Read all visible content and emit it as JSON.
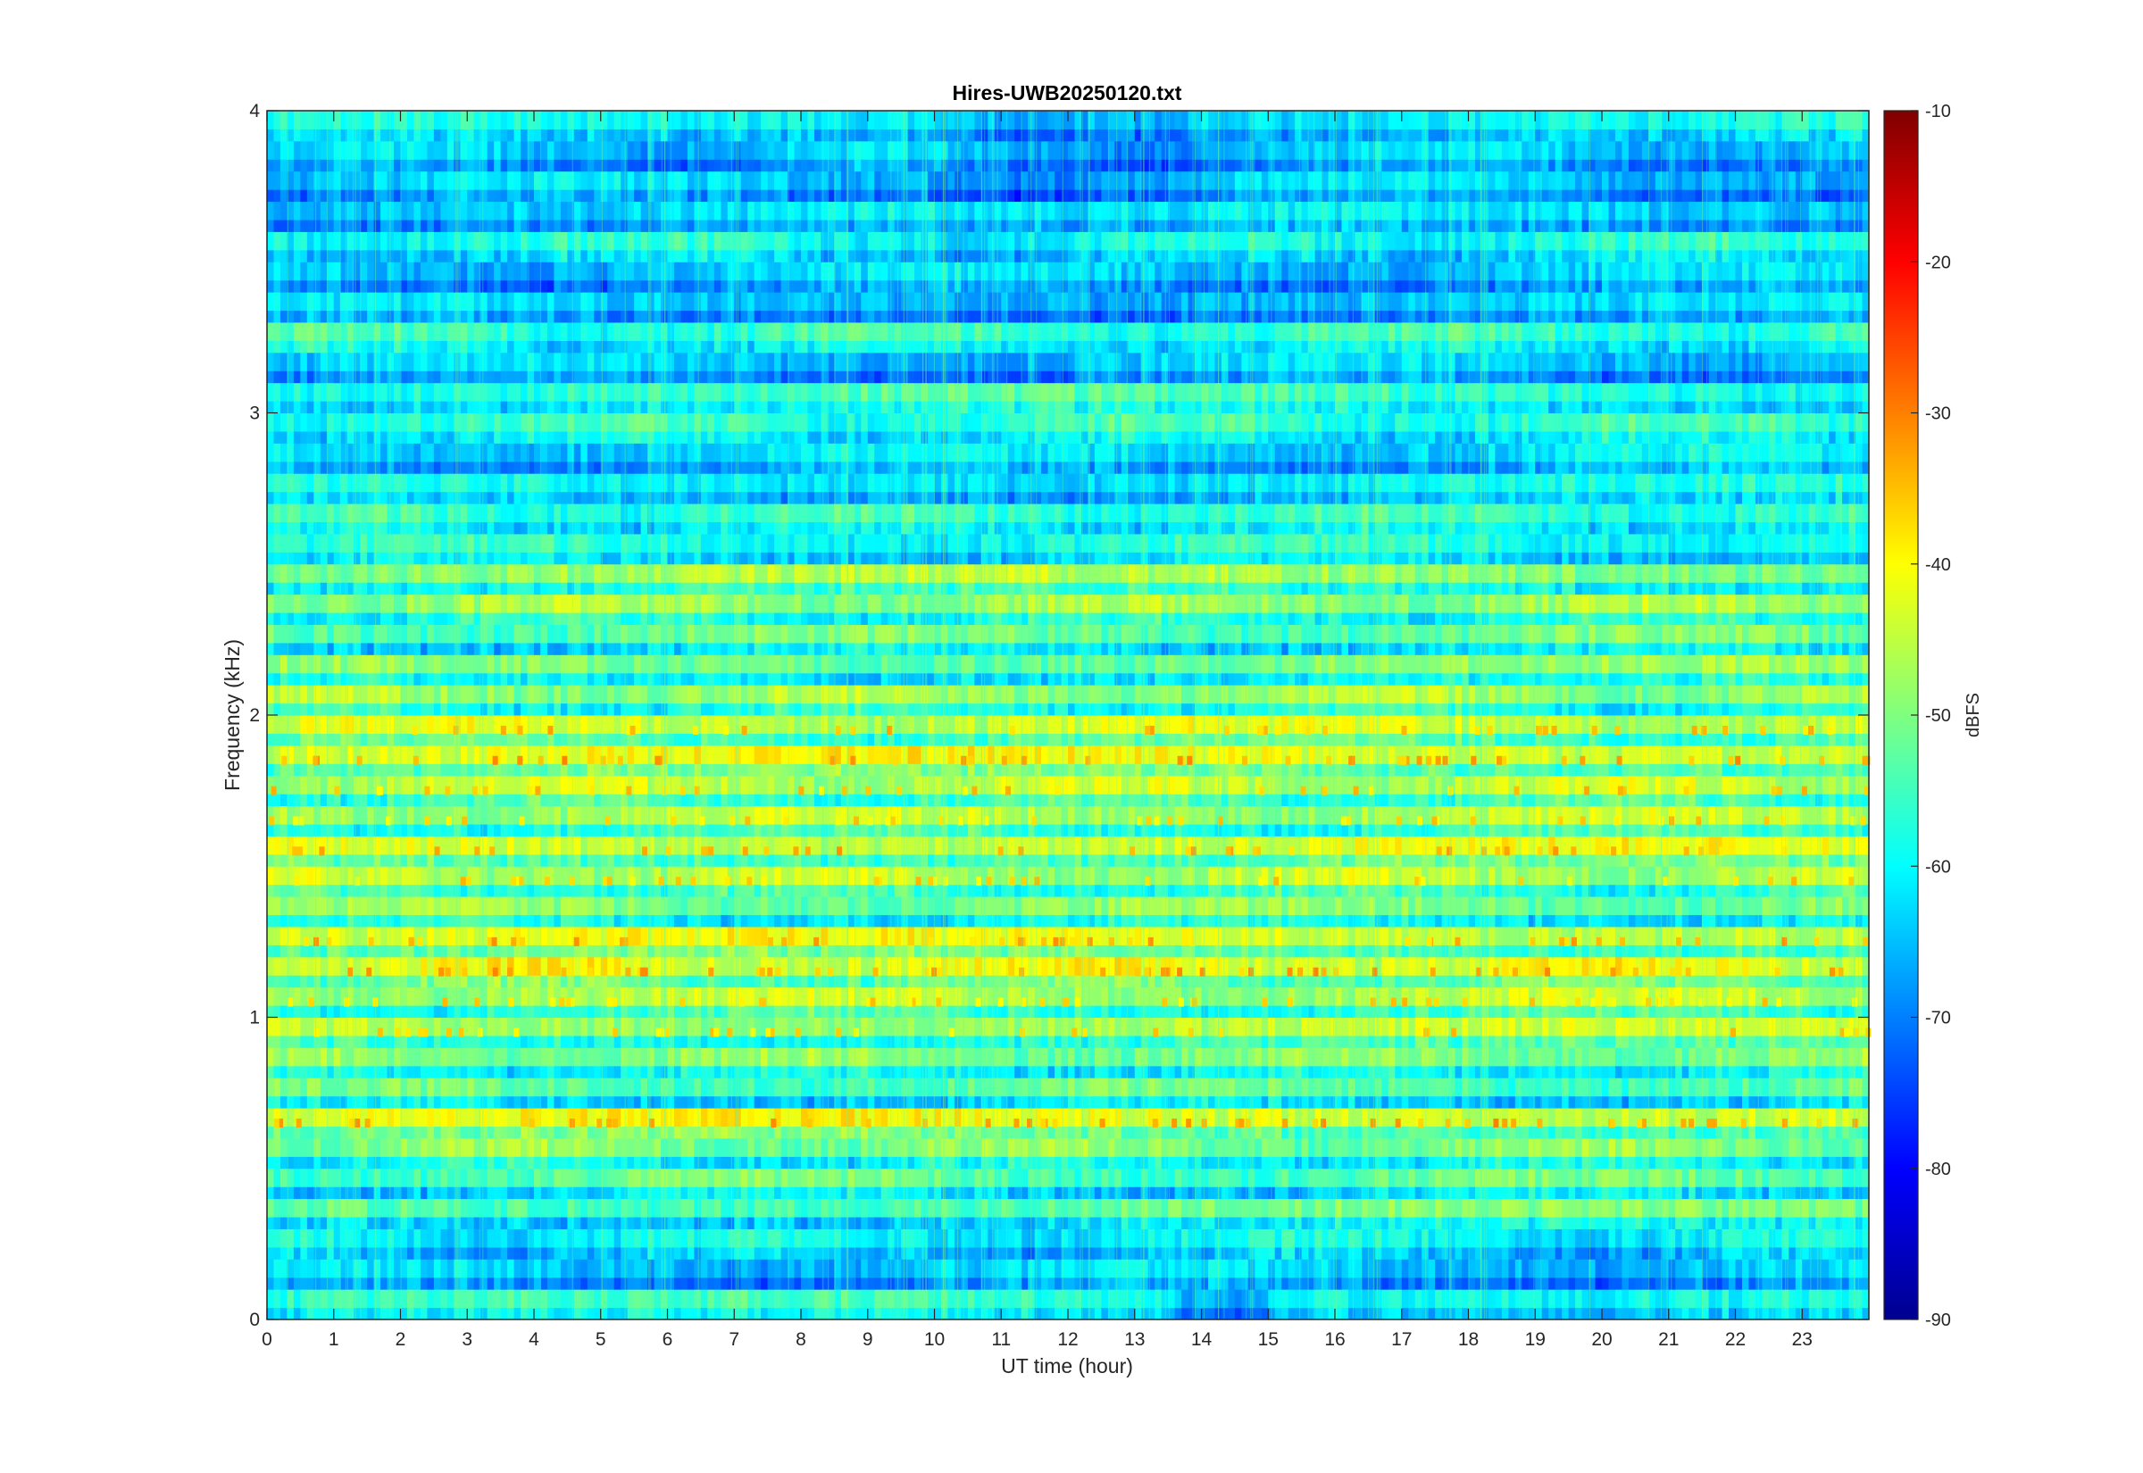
{
  "chart_data": {
    "type": "heatmap",
    "title": "Hires-UWB20250120.txt",
    "xlabel": "UT time (hour)",
    "ylabel": "Frequency (kHz)",
    "xlim": [
      0,
      24
    ],
    "ylim": [
      0,
      4
    ],
    "xticks": [
      0,
      1,
      2,
      3,
      4,
      5,
      6,
      7,
      8,
      9,
      10,
      11,
      12,
      13,
      14,
      15,
      16,
      17,
      18,
      19,
      20,
      21,
      22,
      23
    ],
    "yticks": [
      0,
      1,
      2,
      3,
      4
    ],
    "colorbar": {
      "label": "dBFS",
      "clim": [
        -90,
        -10
      ],
      "ticks": [
        -90,
        -80,
        -70,
        -60,
        -50,
        -40,
        -30,
        -20,
        -10
      ],
      "colormap": "jet"
    },
    "band_spacing_khz": 0.1,
    "band_profile_dbfs": [
      {
        "f": 0.05,
        "level": -57
      },
      {
        "f": 0.15,
        "level": -64
      },
      {
        "f": 0.25,
        "level": -60
      },
      {
        "f": 0.35,
        "level": -52
      },
      {
        "f": 0.45,
        "level": -53
      },
      {
        "f": 0.55,
        "level": -50
      },
      {
        "f": 0.65,
        "level": -42
      },
      {
        "f": 0.75,
        "level": -53
      },
      {
        "f": 0.85,
        "level": -50
      },
      {
        "f": 0.95,
        "level": -46
      },
      {
        "f": 1.05,
        "level": -46
      },
      {
        "f": 1.15,
        "level": -42
      },
      {
        "f": 1.25,
        "level": -43
      },
      {
        "f": 1.35,
        "level": -50
      },
      {
        "f": 1.45,
        "level": -46
      },
      {
        "f": 1.55,
        "level": -43
      },
      {
        "f": 1.65,
        "level": -46
      },
      {
        "f": 1.75,
        "level": -45
      },
      {
        "f": 1.85,
        "level": -42
      },
      {
        "f": 1.95,
        "level": -44
      },
      {
        "f": 2.05,
        "level": -48
      },
      {
        "f": 2.15,
        "level": -50
      },
      {
        "f": 2.25,
        "level": -52
      },
      {
        "f": 2.35,
        "level": -48
      },
      {
        "f": 2.45,
        "level": -48
      },
      {
        "f": 2.55,
        "level": -58
      },
      {
        "f": 2.65,
        "level": -56
      },
      {
        "f": 2.75,
        "level": -60
      },
      {
        "f": 2.85,
        "level": -62
      },
      {
        "f": 2.95,
        "level": -56
      },
      {
        "f": 3.05,
        "level": -56
      },
      {
        "f": 3.15,
        "level": -64
      },
      {
        "f": 3.25,
        "level": -56
      },
      {
        "f": 3.35,
        "level": -64
      },
      {
        "f": 3.45,
        "level": -64
      },
      {
        "f": 3.55,
        "level": -58
      },
      {
        "f": 3.65,
        "level": -62
      },
      {
        "f": 3.75,
        "level": -64
      },
      {
        "f": 3.85,
        "level": -64
      },
      {
        "f": 3.95,
        "level": -60
      }
    ]
  }
}
